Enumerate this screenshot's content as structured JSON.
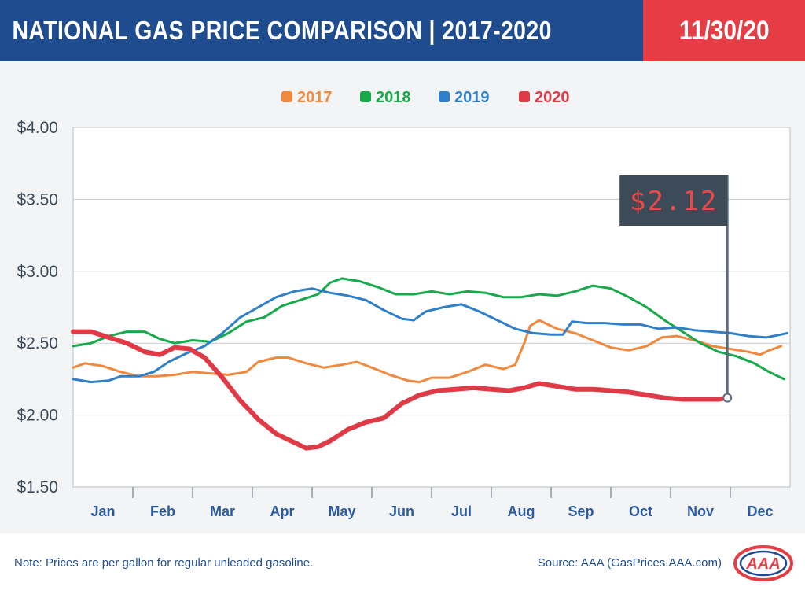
{
  "header": {
    "title": "NATIONAL GAS PRICE COMPARISON | 2017-2020",
    "date": "11/30/20",
    "left_color": "#1f4b8f",
    "right_color": "#e63c44"
  },
  "footer": {
    "note": "Note: Prices are per gallon for regular unleaded gasoline.",
    "source": "Source: AAA (GasPrices.AAA.com)",
    "logo": "AAA"
  },
  "chart_data": {
    "type": "line",
    "title": "",
    "xlabel": "",
    "ylabel": "",
    "ylim": [
      1.5,
      4.0
    ],
    "xlim": [
      0,
      12
    ],
    "yticks": [
      1.5,
      2.0,
      2.5,
      3.0,
      3.5,
      4.0
    ],
    "ytick_labels": [
      "$1.50",
      "$2.00",
      "$2.50",
      "$3.00",
      "$3.50",
      "$4.00"
    ],
    "categories": [
      "Jan",
      "Feb",
      "Mar",
      "Apr",
      "May",
      "Jun",
      "Jul",
      "Aug",
      "Sep",
      "Oct",
      "Nov",
      "Dec"
    ],
    "grid": "horizontal",
    "legend": "top-center",
    "annotation": {
      "label": "$2.12",
      "x": 10.95,
      "y": 2.12
    },
    "series": [
      {
        "name": "2017",
        "color": "#f0883e",
        "width": 3,
        "points": [
          [
            0,
            2.33
          ],
          [
            0.2,
            2.36
          ],
          [
            0.5,
            2.34
          ],
          [
            0.8,
            2.3
          ],
          [
            1.1,
            2.27
          ],
          [
            1.4,
            2.27
          ],
          [
            1.7,
            2.28
          ],
          [
            2.0,
            2.3
          ],
          [
            2.3,
            2.29
          ],
          [
            2.6,
            2.28
          ],
          [
            2.9,
            2.3
          ],
          [
            3.1,
            2.37
          ],
          [
            3.4,
            2.4
          ],
          [
            3.6,
            2.4
          ],
          [
            3.9,
            2.36
          ],
          [
            4.2,
            2.33
          ],
          [
            4.5,
            2.35
          ],
          [
            4.75,
            2.37
          ],
          [
            5.0,
            2.33
          ],
          [
            5.3,
            2.28
          ],
          [
            5.6,
            2.24
          ],
          [
            5.8,
            2.23
          ],
          [
            6.0,
            2.26
          ],
          [
            6.3,
            2.26
          ],
          [
            6.6,
            2.3
          ],
          [
            6.9,
            2.35
          ],
          [
            7.2,
            2.32
          ],
          [
            7.4,
            2.35
          ],
          [
            7.55,
            2.5
          ],
          [
            7.65,
            2.62
          ],
          [
            7.8,
            2.66
          ],
          [
            8.1,
            2.6
          ],
          [
            8.4,
            2.57
          ],
          [
            8.7,
            2.52
          ],
          [
            9.0,
            2.47
          ],
          [
            9.3,
            2.45
          ],
          [
            9.6,
            2.48
          ],
          [
            9.85,
            2.54
          ],
          [
            10.1,
            2.55
          ],
          [
            10.4,
            2.52
          ],
          [
            10.7,
            2.48
          ],
          [
            11.0,
            2.46
          ],
          [
            11.3,
            2.44
          ],
          [
            11.5,
            2.42
          ],
          [
            11.65,
            2.45
          ],
          [
            11.85,
            2.48
          ]
        ]
      },
      {
        "name": "2018",
        "color": "#17a94a",
        "width": 3,
        "points": [
          [
            0,
            2.48
          ],
          [
            0.3,
            2.5
          ],
          [
            0.6,
            2.55
          ],
          [
            0.9,
            2.58
          ],
          [
            1.2,
            2.58
          ],
          [
            1.45,
            2.53
          ],
          [
            1.7,
            2.5
          ],
          [
            2.0,
            2.52
          ],
          [
            2.3,
            2.51
          ],
          [
            2.6,
            2.57
          ],
          [
            2.9,
            2.65
          ],
          [
            3.2,
            2.68
          ],
          [
            3.5,
            2.76
          ],
          [
            3.8,
            2.8
          ],
          [
            4.1,
            2.84
          ],
          [
            4.3,
            2.92
          ],
          [
            4.5,
            2.95
          ],
          [
            4.8,
            2.93
          ],
          [
            5.1,
            2.89
          ],
          [
            5.4,
            2.84
          ],
          [
            5.7,
            2.84
          ],
          [
            6.0,
            2.86
          ],
          [
            6.3,
            2.84
          ],
          [
            6.6,
            2.86
          ],
          [
            6.9,
            2.85
          ],
          [
            7.2,
            2.82
          ],
          [
            7.5,
            2.82
          ],
          [
            7.8,
            2.84
          ],
          [
            8.1,
            2.83
          ],
          [
            8.4,
            2.86
          ],
          [
            8.7,
            2.9
          ],
          [
            9.0,
            2.88
          ],
          [
            9.3,
            2.82
          ],
          [
            9.6,
            2.75
          ],
          [
            9.9,
            2.66
          ],
          [
            10.2,
            2.58
          ],
          [
            10.5,
            2.5
          ],
          [
            10.8,
            2.44
          ],
          [
            11.1,
            2.41
          ],
          [
            11.4,
            2.36
          ],
          [
            11.65,
            2.3
          ],
          [
            11.9,
            2.25
          ]
        ]
      },
      {
        "name": "2019",
        "color": "#2f80c8",
        "width": 3,
        "points": [
          [
            0,
            2.25
          ],
          [
            0.3,
            2.23
          ],
          [
            0.6,
            2.24
          ],
          [
            0.8,
            2.27
          ],
          [
            1.1,
            2.27
          ],
          [
            1.35,
            2.3
          ],
          [
            1.6,
            2.37
          ],
          [
            1.9,
            2.43
          ],
          [
            2.2,
            2.48
          ],
          [
            2.5,
            2.57
          ],
          [
            2.8,
            2.68
          ],
          [
            3.1,
            2.75
          ],
          [
            3.4,
            2.82
          ],
          [
            3.7,
            2.86
          ],
          [
            4.0,
            2.88
          ],
          [
            4.3,
            2.85
          ],
          [
            4.6,
            2.83
          ],
          [
            4.9,
            2.8
          ],
          [
            5.2,
            2.73
          ],
          [
            5.5,
            2.67
          ],
          [
            5.7,
            2.66
          ],
          [
            5.9,
            2.72
          ],
          [
            6.2,
            2.75
          ],
          [
            6.5,
            2.77
          ],
          [
            6.8,
            2.72
          ],
          [
            7.1,
            2.66
          ],
          [
            7.4,
            2.6
          ],
          [
            7.7,
            2.57
          ],
          [
            8.0,
            2.56
          ],
          [
            8.2,
            2.56
          ],
          [
            8.35,
            2.65
          ],
          [
            8.6,
            2.64
          ],
          [
            8.9,
            2.64
          ],
          [
            9.2,
            2.63
          ],
          [
            9.5,
            2.63
          ],
          [
            9.8,
            2.6
          ],
          [
            10.1,
            2.61
          ],
          [
            10.4,
            2.59
          ],
          [
            10.7,
            2.58
          ],
          [
            11.0,
            2.57
          ],
          [
            11.3,
            2.55
          ],
          [
            11.6,
            2.54
          ],
          [
            11.85,
            2.56
          ],
          [
            11.95,
            2.57
          ]
        ]
      },
      {
        "name": "2020",
        "color": "#e03a46",
        "width": 6,
        "points": [
          [
            0,
            2.58
          ],
          [
            0.3,
            2.58
          ],
          [
            0.6,
            2.54
          ],
          [
            0.9,
            2.5
          ],
          [
            1.2,
            2.44
          ],
          [
            1.45,
            2.42
          ],
          [
            1.7,
            2.47
          ],
          [
            1.95,
            2.46
          ],
          [
            2.2,
            2.4
          ],
          [
            2.5,
            2.26
          ],
          [
            2.8,
            2.1
          ],
          [
            3.1,
            1.97
          ],
          [
            3.4,
            1.87
          ],
          [
            3.7,
            1.81
          ],
          [
            3.9,
            1.77
          ],
          [
            4.1,
            1.78
          ],
          [
            4.3,
            1.82
          ],
          [
            4.6,
            1.9
          ],
          [
            4.9,
            1.95
          ],
          [
            5.2,
            1.98
          ],
          [
            5.5,
            2.08
          ],
          [
            5.8,
            2.14
          ],
          [
            6.1,
            2.17
          ],
          [
            6.4,
            2.18
          ],
          [
            6.7,
            2.19
          ],
          [
            7.0,
            2.18
          ],
          [
            7.3,
            2.17
          ],
          [
            7.55,
            2.19
          ],
          [
            7.8,
            2.22
          ],
          [
            8.1,
            2.2
          ],
          [
            8.4,
            2.18
          ],
          [
            8.7,
            2.18
          ],
          [
            9.0,
            2.17
          ],
          [
            9.3,
            2.16
          ],
          [
            9.6,
            2.14
          ],
          [
            9.9,
            2.12
          ],
          [
            10.2,
            2.11
          ],
          [
            10.5,
            2.11
          ],
          [
            10.8,
            2.11
          ],
          [
            10.95,
            2.12
          ]
        ]
      }
    ]
  }
}
